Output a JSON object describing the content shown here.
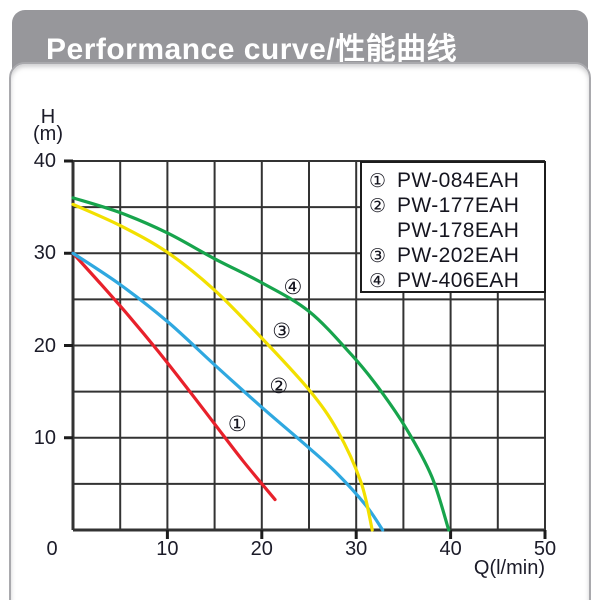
{
  "header": {
    "title": "Performance curve/性能曲线"
  },
  "chart_data": {
    "type": "line",
    "title": "Performance curve/性能曲线",
    "xlabel": "Q(l/min)",
    "ylabel_lines": [
      "H",
      "(m)"
    ],
    "xlim": [
      0,
      50
    ],
    "ylim": [
      0,
      40
    ],
    "x_ticks": [
      0,
      10,
      20,
      30,
      40,
      50
    ],
    "y_ticks": [
      10,
      20,
      30,
      40
    ],
    "grid_step": 5,
    "grid": true,
    "legend_position": "top-right",
    "series": [
      {
        "index": "①",
        "name": "PW-084EAH",
        "color": "#e8212b",
        "points": [
          [
            0,
            30
          ],
          [
            3,
            26.6
          ],
          [
            6,
            23.1
          ],
          [
            9,
            19.4
          ],
          [
            12,
            15.5
          ],
          [
            15,
            11.5
          ],
          [
            18,
            7.5
          ],
          [
            21.4,
            3.3
          ]
        ],
        "label_at": [
          17.4,
          11.5
        ]
      },
      {
        "index": "②",
        "name": "PW-177EAH / PW-178EAH",
        "color": "#2fa8e0",
        "points": [
          [
            0,
            30
          ],
          [
            5,
            26.6
          ],
          [
            10,
            22.6
          ],
          [
            15,
            17.9
          ],
          [
            20,
            13.3
          ],
          [
            25,
            8.9
          ],
          [
            28,
            6.1
          ],
          [
            31,
            2.7
          ],
          [
            32.8,
            0
          ]
        ],
        "label_at": [
          21.8,
          15.6
        ]
      },
      {
        "index": "③",
        "name": "PW-202EAH",
        "color": "#f2e000",
        "points": [
          [
            0,
            35.3
          ],
          [
            5,
            33
          ],
          [
            10,
            30.1
          ],
          [
            15,
            26
          ],
          [
            20,
            20.8
          ],
          [
            25,
            15.2
          ],
          [
            28,
            10.8
          ],
          [
            30.5,
            5.2
          ],
          [
            31.7,
            0
          ]
        ],
        "label_at": [
          22.1,
          21.6
        ]
      },
      {
        "index": "④",
        "name": "PW-406EAH",
        "color": "#17a44c",
        "points": [
          [
            0,
            36
          ],
          [
            5,
            34.4
          ],
          [
            10,
            32.2
          ],
          [
            15,
            29.4
          ],
          [
            20,
            26.8
          ],
          [
            25,
            23.7
          ],
          [
            29.5,
            19
          ],
          [
            32.3,
            15.5
          ],
          [
            35.3,
            11
          ],
          [
            38,
            5.8
          ],
          [
            39.8,
            0
          ]
        ],
        "label_at": [
          23.3,
          26.3
        ]
      }
    ],
    "legend_rows": [
      {
        "num": "①",
        "label": "PW-084EAH"
      },
      {
        "num": "②",
        "label": "PW-177EAH"
      },
      {
        "num": "",
        "label": "PW-178EAH"
      },
      {
        "num": "③",
        "label": "PW-202EAH"
      },
      {
        "num": "④",
        "label": "PW-406EAH"
      }
    ]
  },
  "colors": {
    "titlebar_bg": "#97979b",
    "panel_border": "#a9a9ad",
    "grid": "#333333",
    "axis": "#1c1c1c",
    "tick_text": "#1b1b28",
    "legend_border": "#1c1c1c"
  }
}
